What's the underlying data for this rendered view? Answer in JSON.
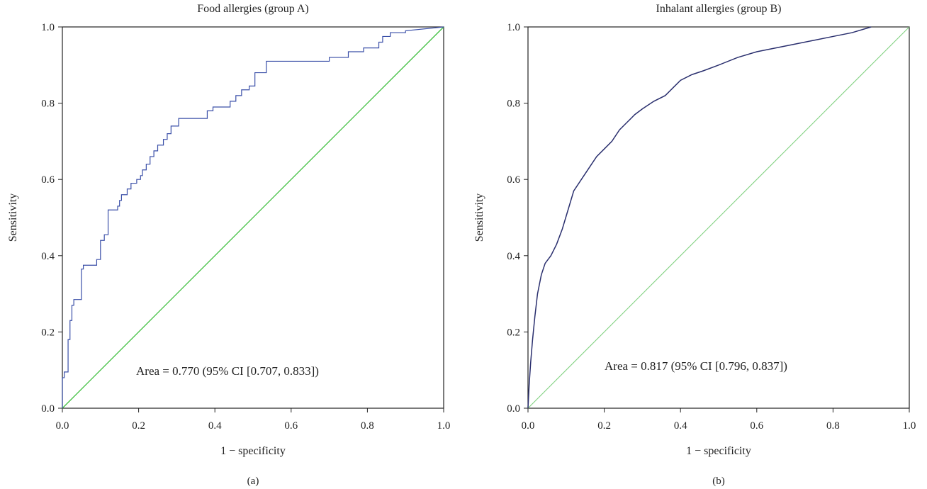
{
  "chart_data": [
    {
      "type": "line",
      "panel_label": "(a)",
      "title": "Food allergies (group A)",
      "xlabel": "1 − specificity",
      "ylabel": "Sensitivity",
      "xlim": [
        0,
        1
      ],
      "ylim": [
        0,
        1
      ],
      "x_ticks": [
        "0.0",
        "0.2",
        "0.4",
        "0.6",
        "0.8",
        "1.0"
      ],
      "y_ticks": [
        "0.0",
        "0.2",
        "0.4",
        "0.6",
        "0.8",
        "1.0"
      ],
      "annotation": "Area = 0.770 (95% CI [0.707, 0.833])",
      "grid": false,
      "series": [
        {
          "color": "#3a4fa8",
          "step": true,
          "x": [
            0.0,
            0.0,
            0.005,
            0.005,
            0.015,
            0.015,
            0.02,
            0.02,
            0.025,
            0.025,
            0.03,
            0.03,
            0.05,
            0.05,
            0.055,
            0.055,
            0.09,
            0.09,
            0.1,
            0.1,
            0.11,
            0.11,
            0.12,
            0.12,
            0.145,
            0.145,
            0.15,
            0.15,
            0.155,
            0.155,
            0.17,
            0.17,
            0.18,
            0.18,
            0.195,
            0.195,
            0.205,
            0.205,
            0.21,
            0.21,
            0.22,
            0.22,
            0.23,
            0.23,
            0.24,
            0.24,
            0.25,
            0.25,
            0.265,
            0.265,
            0.275,
            0.275,
            0.285,
            0.285,
            0.305,
            0.305,
            0.38,
            0.38,
            0.395,
            0.395,
            0.44,
            0.44,
            0.455,
            0.455,
            0.47,
            0.47,
            0.49,
            0.49,
            0.505,
            0.505,
            0.535,
            0.535,
            0.545,
            0.545,
            0.7,
            0.7,
            0.75,
            0.75,
            0.79,
            0.79,
            0.83,
            0.83,
            0.84,
            0.84,
            0.86,
            0.86,
            0.9,
            0.9,
            1.0
          ],
          "y": [
            0.0,
            0.08,
            0.08,
            0.095,
            0.095,
            0.18,
            0.18,
            0.23,
            0.23,
            0.27,
            0.27,
            0.285,
            0.285,
            0.365,
            0.365,
            0.375,
            0.375,
            0.39,
            0.39,
            0.44,
            0.44,
            0.455,
            0.455,
            0.52,
            0.52,
            0.53,
            0.53,
            0.545,
            0.545,
            0.56,
            0.56,
            0.575,
            0.575,
            0.59,
            0.59,
            0.6,
            0.6,
            0.61,
            0.61,
            0.625,
            0.625,
            0.64,
            0.64,
            0.66,
            0.66,
            0.675,
            0.675,
            0.69,
            0.69,
            0.705,
            0.705,
            0.72,
            0.72,
            0.74,
            0.74,
            0.76,
            0.76,
            0.78,
            0.78,
            0.79,
            0.79,
            0.805,
            0.805,
            0.82,
            0.82,
            0.835,
            0.835,
            0.845,
            0.845,
            0.88,
            0.88,
            0.91,
            0.91,
            0.91,
            0.91,
            0.92,
            0.92,
            0.935,
            0.935,
            0.945,
            0.945,
            0.96,
            0.96,
            0.975,
            0.975,
            0.985,
            0.985,
            0.99,
            1.0
          ]
        },
        {
          "color": "#3fbf3f",
          "step": false,
          "x": [
            0,
            1
          ],
          "y": [
            0,
            1
          ]
        }
      ]
    },
    {
      "type": "line",
      "panel_label": "(b)",
      "title": "Inhalant allergies (group B)",
      "xlabel": "1 − specificity",
      "ylabel": "Sensitivity",
      "xlim": [
        0,
        1
      ],
      "ylim": [
        0,
        1
      ],
      "x_ticks": [
        "0.0",
        "0.2",
        "0.4",
        "0.6",
        "0.8",
        "1.0"
      ],
      "y_ticks": [
        "0.0",
        "0.2",
        "0.4",
        "0.6",
        "0.8",
        "1.0"
      ],
      "annotation": "Area = 0.817 (95% CI [0.796, 0.837])",
      "grid": false,
      "series": [
        {
          "color": "#2a2f6e",
          "step": false,
          "x": [
            0.0,
            0.003,
            0.007,
            0.012,
            0.018,
            0.025,
            0.035,
            0.045,
            0.06,
            0.075,
            0.09,
            0.105,
            0.12,
            0.14,
            0.16,
            0.18,
            0.2,
            0.22,
            0.24,
            0.26,
            0.28,
            0.3,
            0.33,
            0.36,
            0.38,
            0.4,
            0.43,
            0.46,
            0.5,
            0.55,
            0.6,
            0.65,
            0.7,
            0.75,
            0.8,
            0.85,
            0.9
          ],
          "y": [
            0.0,
            0.06,
            0.12,
            0.18,
            0.24,
            0.3,
            0.35,
            0.38,
            0.4,
            0.43,
            0.47,
            0.52,
            0.57,
            0.6,
            0.63,
            0.66,
            0.68,
            0.7,
            0.73,
            0.75,
            0.77,
            0.785,
            0.805,
            0.82,
            0.84,
            0.86,
            0.875,
            0.885,
            0.9,
            0.92,
            0.935,
            0.945,
            0.955,
            0.965,
            0.975,
            0.985,
            1.0
          ]
        },
        {
          "color": "#7fd07f",
          "step": false,
          "x": [
            0,
            1
          ],
          "y": [
            0,
            1
          ]
        }
      ]
    }
  ]
}
